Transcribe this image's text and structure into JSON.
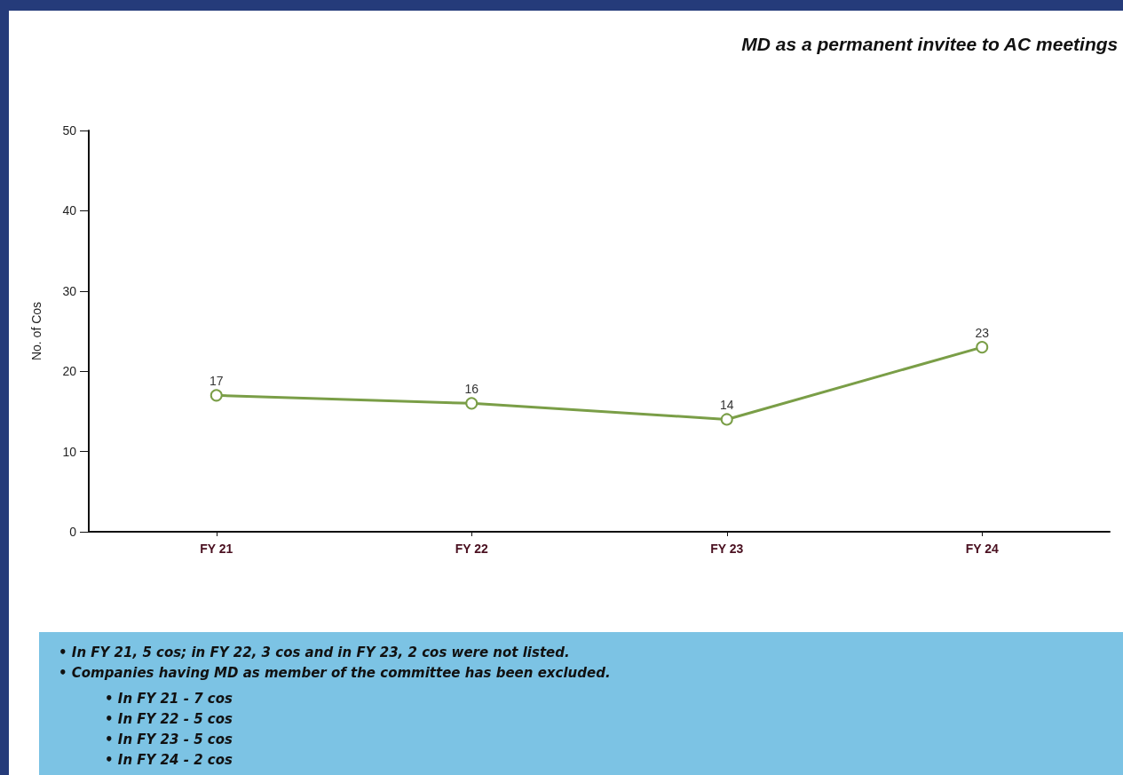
{
  "chart_data": {
    "type": "line",
    "title": "MD as a permanent invitee to AC meetings",
    "ylabel": "No. of Cos",
    "categories": [
      "FY 21",
      "FY 22",
      "FY 23",
      "FY 24"
    ],
    "series": [
      {
        "color": "#7a9e47",
        "values": [
          17,
          16,
          14,
          23
        ]
      }
    ],
    "ylim": [
      0,
      50
    ],
    "yticks": [
      0,
      10,
      20,
      30,
      40,
      50
    ],
    "grid": false,
    "marker": "circle",
    "line_style": "solid",
    "data_labels": true,
    "annotations": [
      "• In FY 21, 5 cos; in FY 22, 3 cos and in FY 23, 2 cos were not listed.",
      "• Companies having MD as member of the committee has been excluded.",
      "• In FY 21 - 7 cos",
      "• In FY 22 - 5 cos",
      "• In FY 23 - 5 cos",
      "• In FY 24 - 2 cos"
    ]
  }
}
